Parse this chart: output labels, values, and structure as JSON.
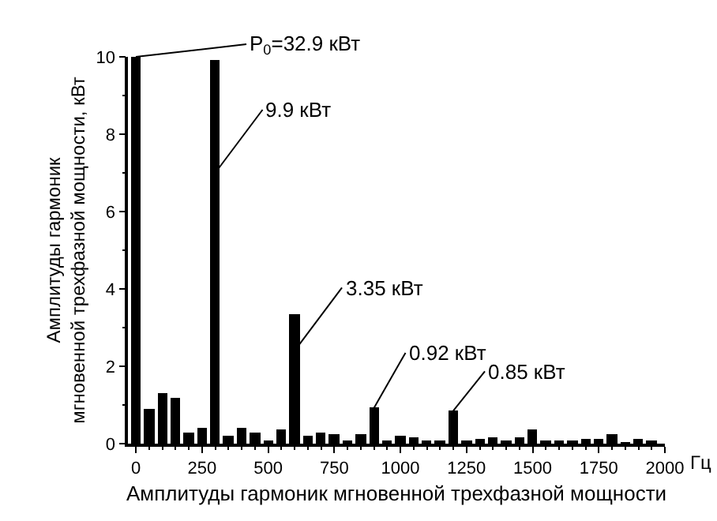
{
  "chart_data": {
    "type": "bar",
    "x": [
      0,
      50,
      100,
      150,
      200,
      250,
      300,
      350,
      400,
      450,
      500,
      550,
      600,
      650,
      700,
      750,
      800,
      850,
      900,
      950,
      1000,
      1050,
      1100,
      1150,
      1200,
      1250,
      1300,
      1350,
      1400,
      1450,
      1500,
      1550,
      1600,
      1650,
      1700,
      1750,
      1800,
      1850,
      1900,
      1950
    ],
    "values": [
      10,
      0.9,
      1.3,
      1.2,
      0.3,
      0.4,
      9.9,
      0.2,
      0.4,
      0.3,
      0.1,
      0.35,
      3.35,
      0.2,
      0.3,
      0.25,
      0.1,
      0.25,
      0.92,
      0.1,
      0.2,
      0.15,
      0.08,
      0.08,
      0.85,
      0.1,
      0.12,
      0.18,
      0.05,
      0.15,
      0.38,
      0.08,
      0.1,
      0.1,
      0.12,
      0.12,
      0.25,
      0.02,
      0.12,
      0.1
    ],
    "color": "#000000",
    "xlabel": "Амплитуды гармоник мгновенной трехфазной мощности",
    "ylabel": "Амплитуды гармоник\nмгновенной трехфазной мощности, кВт",
    "xlim": [
      -30,
      2000
    ],
    "xticks": [
      0,
      250,
      500,
      750,
      1000,
      1250,
      1500,
      1750,
      2000
    ],
    "ylim": [
      0,
      10
    ],
    "yticks": [
      0,
      2,
      4,
      6,
      8,
      10
    ],
    "annotations": [
      {
        "text": "P$_{0}$=32.9 кВт",
        "x": 0,
        "y": 10
      },
      {
        "text": "9.9 кВт",
        "x": 300,
        "y": 7
      },
      {
        "text": "3.35 кВт",
        "x": 600,
        "y": 2.4
      },
      {
        "text": "0.92 кВт",
        "x": 900,
        "y": 0.92
      },
      {
        "text": "0.85 кВт",
        "x": 1200,
        "y": 0.85
      },
      "Гц"
    ]
  }
}
